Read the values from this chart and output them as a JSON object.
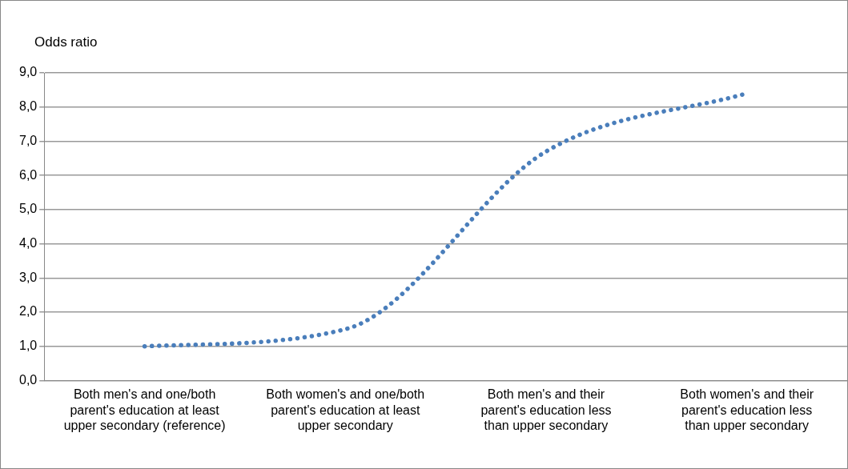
{
  "chart_data": {
    "type": "line",
    "ylabel": "Odds ratio",
    "categories": [
      "Both men's and one/both parent's education at least upper secondary (reference)",
      "Both women's and one/both parent's education at least upper secondary",
      "Both men's and their parent's education less than upper secondary",
      "Both women's and their parent's education less than upper secondary"
    ],
    "series": [
      {
        "color": "#4a7ebb",
        "values": [
          1.0,
          1.5,
          6.7,
          8.4
        ]
      }
    ],
    "ylim": [
      0,
      9
    ],
    "yticks": [
      {
        "value": 0,
        "label": "0,0"
      },
      {
        "value": 1,
        "label": "1,0"
      },
      {
        "value": 2,
        "label": "2,0"
      },
      {
        "value": 3,
        "label": "3,0"
      },
      {
        "value": 4,
        "label": "4,0"
      },
      {
        "value": 5,
        "label": "5,0"
      },
      {
        "value": 6,
        "label": "6,0"
      },
      {
        "value": 7,
        "label": "7,0"
      },
      {
        "value": 8,
        "label": "8,0"
      },
      {
        "value": 9,
        "label": "9,0"
      }
    ],
    "grid": "y",
    "legend": false,
    "marker": "none",
    "line_style": "dotted"
  }
}
